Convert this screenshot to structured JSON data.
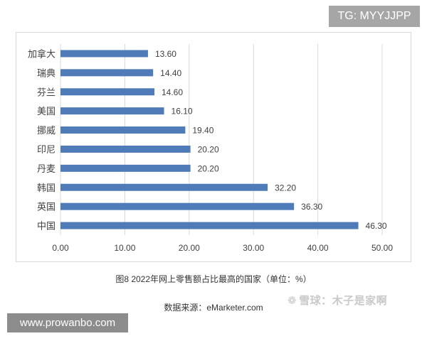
{
  "badges": {
    "telegram": "TG: MYYJJPP",
    "website": "www.prowanbo.com"
  },
  "captions": {
    "title": "图8 2022年网上零售额占比最高的国家（单位：%）",
    "source": "数据来源：eMarketer.com"
  },
  "watermark": {
    "text": "雪球：木子是家啊"
  },
  "colors": {
    "bar": "#4f7bb8",
    "grid": "#d9d9d9",
    "text": "#404040"
  },
  "chart_data": {
    "type": "bar",
    "orientation": "horizontal",
    "categories": [
      "加拿大",
      "瑞典",
      "芬兰",
      "美国",
      "挪威",
      "印尼",
      "丹麦",
      "韩国",
      "英国",
      "中国"
    ],
    "values": [
      13.6,
      14.4,
      14.6,
      16.1,
      19.4,
      20.2,
      20.2,
      32.2,
      36.3,
      46.3
    ],
    "data_labels": [
      "13.60",
      "14.40",
      "14.60",
      "16.10",
      "19.40",
      "20.20",
      "20.20",
      "32.20",
      "36.30",
      "46.30"
    ],
    "x_ticks": [
      "0.00",
      "10.00",
      "20.00",
      "30.00",
      "40.00",
      "50.00"
    ],
    "xlim": [
      0,
      50
    ],
    "grid": true,
    "legend": false
  }
}
